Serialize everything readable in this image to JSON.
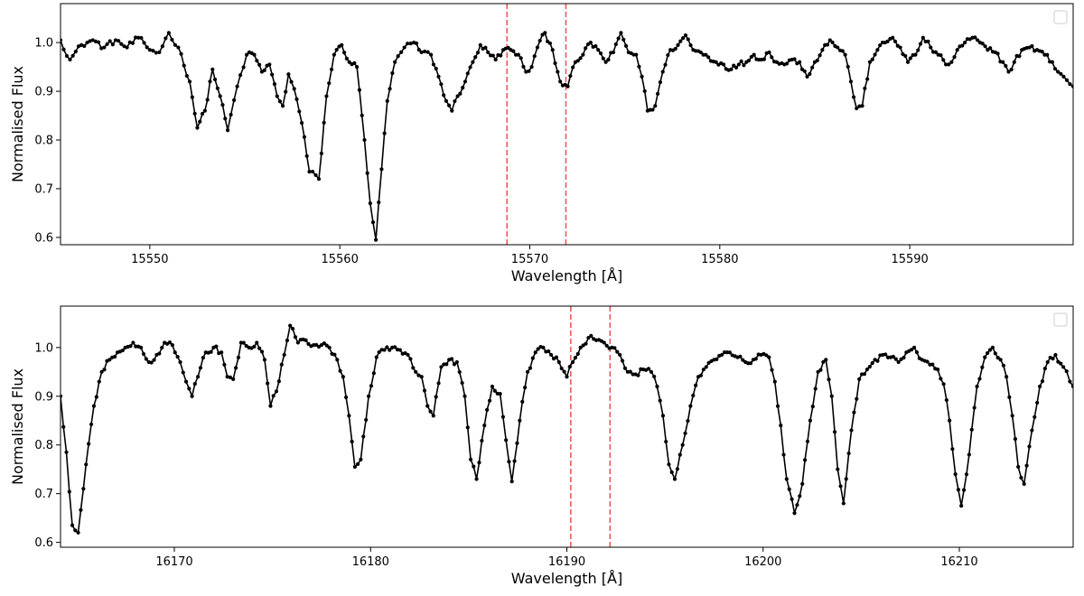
{
  "chart_data": [
    {
      "type": "line",
      "xlabel": "Wavelength [Å]",
      "ylabel": "Normalised Flux",
      "xlim": [
        15545.3,
        15598.6
      ],
      "ylim": [
        0.585,
        1.08
      ],
      "xticks": [
        15550,
        15560,
        15570,
        15580,
        15590
      ],
      "xtick_labels": [
        "15550",
        "15560",
        "15570",
        "15580",
        "15590"
      ],
      "yticks": [
        0.6,
        0.7,
        0.8,
        0.9,
        1.0
      ],
      "ytick_labels": [
        "0.6",
        "0.7",
        "0.8",
        "0.9",
        "1.0"
      ],
      "legend": "top-right, empty",
      "vlines": [
        15568.8,
        15571.9
      ],
      "vline_color": "#e8534f",
      "line_color": "#000000",
      "keypoints": [
        [
          15545.3,
          1.005
        ],
        [
          15545.8,
          0.965
        ],
        [
          15546.4,
          0.995
        ],
        [
          15547.0,
          1.005
        ],
        [
          15547.6,
          0.99
        ],
        [
          15548.2,
          1.005
        ],
        [
          15548.8,
          0.99
        ],
        [
          15549.4,
          1.01
        ],
        [
          15550.0,
          0.985
        ],
        [
          15550.5,
          0.98
        ],
        [
          15551.0,
          1.02
        ],
        [
          15551.5,
          0.99
        ],
        [
          15552.1,
          0.92
        ],
        [
          15552.5,
          0.825
        ],
        [
          15552.9,
          0.86
        ],
        [
          15553.3,
          0.945
        ],
        [
          15553.7,
          0.89
        ],
        [
          15554.1,
          0.82
        ],
        [
          15554.6,
          0.91
        ],
        [
          15555.1,
          0.975
        ],
        [
          15555.5,
          0.975
        ],
        [
          15555.9,
          0.94
        ],
        [
          15556.3,
          0.955
        ],
        [
          15556.7,
          0.89
        ],
        [
          15557.0,
          0.87
        ],
        [
          15557.3,
          0.935
        ],
        [
          15557.6,
          0.905
        ],
        [
          15558.0,
          0.835
        ],
        [
          15558.4,
          0.735
        ],
        [
          15558.9,
          0.72
        ],
        [
          15559.3,
          0.89
        ],
        [
          15559.7,
          0.975
        ],
        [
          15560.1,
          0.995
        ],
        [
          15560.5,
          0.96
        ],
        [
          15560.9,
          0.95
        ],
        [
          15561.3,
          0.8
        ],
        [
          15561.6,
          0.67
        ],
        [
          15561.9,
          0.595
        ],
        [
          15562.2,
          0.74
        ],
        [
          15562.5,
          0.88
        ],
        [
          15562.9,
          0.96
        ],
        [
          15563.4,
          0.99
        ],
        [
          15563.9,
          1.0
        ],
        [
          15564.3,
          0.98
        ],
        [
          15564.8,
          0.975
        ],
        [
          15565.2,
          0.93
        ],
        [
          15565.6,
          0.88
        ],
        [
          15565.9,
          0.86
        ],
        [
          15566.2,
          0.89
        ],
        [
          15566.6,
          0.92
        ],
        [
          15567.0,
          0.96
        ],
        [
          15567.4,
          0.995
        ],
        [
          15567.8,
          0.98
        ],
        [
          15568.2,
          0.965
        ],
        [
          15568.6,
          0.985
        ],
        [
          15569.0,
          0.985
        ],
        [
          15569.4,
          0.975
        ],
        [
          15569.8,
          0.94
        ],
        [
          15570.1,
          0.95
        ],
        [
          15570.4,
          0.99
        ],
        [
          15570.8,
          1.02
        ],
        [
          15571.2,
          0.985
        ],
        [
          15571.6,
          0.92
        ],
        [
          15572.0,
          0.91
        ],
        [
          15572.4,
          0.96
        ],
        [
          15572.8,
          0.975
        ],
        [
          15573.2,
          1.0
        ],
        [
          15573.6,
          0.985
        ],
        [
          15574.0,
          0.96
        ],
        [
          15574.4,
          0.98
        ],
        [
          15574.8,
          1.02
        ],
        [
          15575.2,
          0.98
        ],
        [
          15575.6,
          0.975
        ],
        [
          15575.9,
          0.93
        ],
        [
          15576.2,
          0.86
        ],
        [
          15576.6,
          0.87
        ],
        [
          15577.0,
          0.94
        ],
        [
          15577.4,
          0.985
        ],
        [
          15577.8,
          0.995
        ],
        [
          15578.2,
          1.015
        ],
        [
          15578.6,
          0.985
        ],
        [
          15579.0,
          0.98
        ],
        [
          15579.4,
          0.97
        ],
        [
          15579.8,
          0.96
        ],
        [
          15580.2,
          0.955
        ],
        [
          15580.6,
          0.945
        ],
        [
          15581.0,
          0.955
        ],
        [
          15581.4,
          0.96
        ],
        [
          15581.8,
          0.975
        ],
        [
          15582.2,
          0.965
        ],
        [
          15582.6,
          0.98
        ],
        [
          15583.0,
          0.96
        ],
        [
          15583.4,
          0.955
        ],
        [
          15583.8,
          0.965
        ],
        [
          15584.2,
          0.96
        ],
        [
          15584.6,
          0.93
        ],
        [
          15585.0,
          0.96
        ],
        [
          15585.4,
          0.985
        ],
        [
          15585.8,
          1.005
        ],
        [
          15586.2,
          0.99
        ],
        [
          15586.6,
          0.975
        ],
        [
          15586.9,
          0.92
        ],
        [
          15587.2,
          0.865
        ],
        [
          15587.5,
          0.87
        ],
        [
          15587.9,
          0.96
        ],
        [
          15588.3,
          0.985
        ],
        [
          15588.7,
          1.0
        ],
        [
          15589.1,
          1.01
        ],
        [
          15589.5,
          0.99
        ],
        [
          15589.9,
          0.96
        ],
        [
          15590.3,
          0.975
        ],
        [
          15590.7,
          1.01
        ],
        [
          15591.1,
          0.99
        ],
        [
          15591.5,
          0.975
        ],
        [
          15591.9,
          0.955
        ],
        [
          15592.2,
          0.96
        ],
        [
          15592.5,
          0.985
        ],
        [
          15592.9,
          1.0
        ],
        [
          15593.3,
          1.01
        ],
        [
          15593.7,
          1.0
        ],
        [
          15594.1,
          0.985
        ],
        [
          15594.5,
          0.98
        ],
        [
          15594.9,
          0.96
        ],
        [
          15595.2,
          0.94
        ],
        [
          15595.5,
          0.96
        ],
        [
          15595.9,
          0.985
        ],
        [
          15596.3,
          0.99
        ],
        [
          15596.7,
          0.985
        ],
        [
          15597.1,
          0.975
        ],
        [
          15597.5,
          0.96
        ],
        [
          15597.8,
          0.94
        ],
        [
          15598.1,
          0.93
        ],
        [
          15598.6,
          0.91
        ]
      ]
    },
    {
      "type": "line",
      "xlabel": "Wavelength [Å]",
      "ylabel": "Normalised Flux",
      "xlim": [
        16164.2,
        16215.8
      ],
      "ylim": [
        0.59,
        1.085
      ],
      "xticks": [
        16170,
        16180,
        16190,
        16200,
        16210
      ],
      "xtick_labels": [
        "16170",
        "16180",
        "16190",
        "16200",
        "16210"
      ],
      "yticks": [
        0.6,
        0.7,
        0.8,
        0.9,
        1.0
      ],
      "ytick_labels": [
        "0.6",
        "0.7",
        "0.8",
        "0.9",
        "1.0"
      ],
      "legend": "top-right, empty",
      "vlines": [
        16190.2,
        16192.2
      ],
      "vline_color": "#e8534f",
      "line_color": "#000000",
      "keypoints": [
        [
          16164.2,
          0.9
        ],
        [
          16164.5,
          0.785
        ],
        [
          16164.8,
          0.635
        ],
        [
          16165.1,
          0.62
        ],
        [
          16165.5,
          0.76
        ],
        [
          16165.9,
          0.88
        ],
        [
          16166.3,
          0.95
        ],
        [
          16166.7,
          0.975
        ],
        [
          16167.1,
          0.99
        ],
        [
          16167.5,
          1.0
        ],
        [
          16167.9,
          1.01
        ],
        [
          16168.3,
          1.0
        ],
        [
          16168.7,
          0.97
        ],
        [
          16169.1,
          0.985
        ],
        [
          16169.5,
          1.01
        ],
        [
          16169.9,
          1.005
        ],
        [
          16170.3,
          0.97
        ],
        [
          16170.6,
          0.93
        ],
        [
          16170.9,
          0.9
        ],
        [
          16171.2,
          0.94
        ],
        [
          16171.6,
          0.99
        ],
        [
          16172.0,
          1.0
        ],
        [
          16172.4,
          0.99
        ],
        [
          16172.7,
          0.94
        ],
        [
          16173.0,
          0.935
        ],
        [
          16173.4,
          1.01
        ],
        [
          16173.8,
          1.0
        ],
        [
          16174.2,
          1.01
        ],
        [
          16174.6,
          0.975
        ],
        [
          16174.9,
          0.88
        ],
        [
          16175.2,
          0.91
        ],
        [
          16175.6,
          0.985
        ],
        [
          16175.9,
          1.045
        ],
        [
          16176.3,
          1.01
        ],
        [
          16176.7,
          1.015
        ],
        [
          16177.1,
          1.005
        ],
        [
          16177.5,
          1.005
        ],
        [
          16177.9,
          1.0
        ],
        [
          16178.3,
          0.975
        ],
        [
          16178.6,
          0.94
        ],
        [
          16178.9,
          0.86
        ],
        [
          16179.2,
          0.755
        ],
        [
          16179.5,
          0.77
        ],
        [
          16179.9,
          0.9
        ],
        [
          16180.3,
          0.98
        ],
        [
          16180.7,
          0.995
        ],
        [
          16181.1,
          1.0
        ],
        [
          16181.5,
          0.995
        ],
        [
          16181.9,
          0.985
        ],
        [
          16182.3,
          0.95
        ],
        [
          16182.6,
          0.94
        ],
        [
          16182.9,
          0.88
        ],
        [
          16183.2,
          0.86
        ],
        [
          16183.6,
          0.96
        ],
        [
          16184.0,
          0.975
        ],
        [
          16184.4,
          0.97
        ],
        [
          16184.8,
          0.9
        ],
        [
          16185.1,
          0.77
        ],
        [
          16185.4,
          0.73
        ],
        [
          16185.8,
          0.84
        ],
        [
          16186.2,
          0.92
        ],
        [
          16186.6,
          0.905
        ],
        [
          16186.9,
          0.81
        ],
        [
          16187.2,
          0.725
        ],
        [
          16187.6,
          0.85
        ],
        [
          16188.0,
          0.95
        ],
        [
          16188.4,
          0.99
        ],
        [
          16188.8,
          1.0
        ],
        [
          16189.2,
          0.985
        ],
        [
          16189.6,
          0.97
        ],
        [
          16190.0,
          0.94
        ],
        [
          16190.3,
          0.97
        ],
        [
          16190.7,
          1.0
        ],
        [
          16191.1,
          1.02
        ],
        [
          16191.5,
          1.015
        ],
        [
          16191.9,
          1.01
        ],
        [
          16192.3,
          1.0
        ],
        [
          16192.7,
          0.985
        ],
        [
          16193.1,
          0.95
        ],
        [
          16193.5,
          0.945
        ],
        [
          16193.9,
          0.955
        ],
        [
          16194.3,
          0.95
        ],
        [
          16194.6,
          0.92
        ],
        [
          16194.9,
          0.86
        ],
        [
          16195.2,
          0.76
        ],
        [
          16195.5,
          0.73
        ],
        [
          16195.9,
          0.8
        ],
        [
          16196.3,
          0.88
        ],
        [
          16196.7,
          0.94
        ],
        [
          16197.1,
          0.96
        ],
        [
          16197.5,
          0.975
        ],
        [
          16197.9,
          0.985
        ],
        [
          16198.3,
          0.99
        ],
        [
          16198.7,
          0.98
        ],
        [
          16199.1,
          0.97
        ],
        [
          16199.5,
          0.975
        ],
        [
          16199.9,
          0.985
        ],
        [
          16200.3,
          0.98
        ],
        [
          16200.6,
          0.93
        ],
        [
          16200.9,
          0.84
        ],
        [
          16201.2,
          0.73
        ],
        [
          16201.6,
          0.66
        ],
        [
          16202.0,
          0.72
        ],
        [
          16202.4,
          0.85
        ],
        [
          16202.8,
          0.95
        ],
        [
          16203.2,
          0.975
        ],
        [
          16203.5,
          0.9
        ],
        [
          16203.8,
          0.75
        ],
        [
          16204.1,
          0.68
        ],
        [
          16204.5,
          0.83
        ],
        [
          16204.9,
          0.935
        ],
        [
          16205.3,
          0.955
        ],
        [
          16205.7,
          0.975
        ],
        [
          16206.1,
          0.985
        ],
        [
          16206.5,
          0.98
        ],
        [
          16206.9,
          0.97
        ],
        [
          16207.3,
          0.99
        ],
        [
          16207.7,
          1.0
        ],
        [
          16208.1,
          0.975
        ],
        [
          16208.5,
          0.965
        ],
        [
          16208.9,
          0.955
        ],
        [
          16209.2,
          0.925
        ],
        [
          16209.5,
          0.85
        ],
        [
          16209.8,
          0.74
        ],
        [
          16210.1,
          0.675
        ],
        [
          16210.5,
          0.78
        ],
        [
          16210.9,
          0.92
        ],
        [
          16211.3,
          0.98
        ],
        [
          16211.7,
          1.0
        ],
        [
          16212.1,
          0.975
        ],
        [
          16212.4,
          0.94
        ],
        [
          16212.7,
          0.86
        ],
        [
          16213.0,
          0.755
        ],
        [
          16213.3,
          0.72
        ],
        [
          16213.7,
          0.83
        ],
        [
          16214.1,
          0.92
        ],
        [
          16214.5,
          0.97
        ],
        [
          16214.9,
          0.985
        ],
        [
          16215.3,
          0.96
        ],
        [
          16215.8,
          0.92
        ]
      ]
    }
  ]
}
